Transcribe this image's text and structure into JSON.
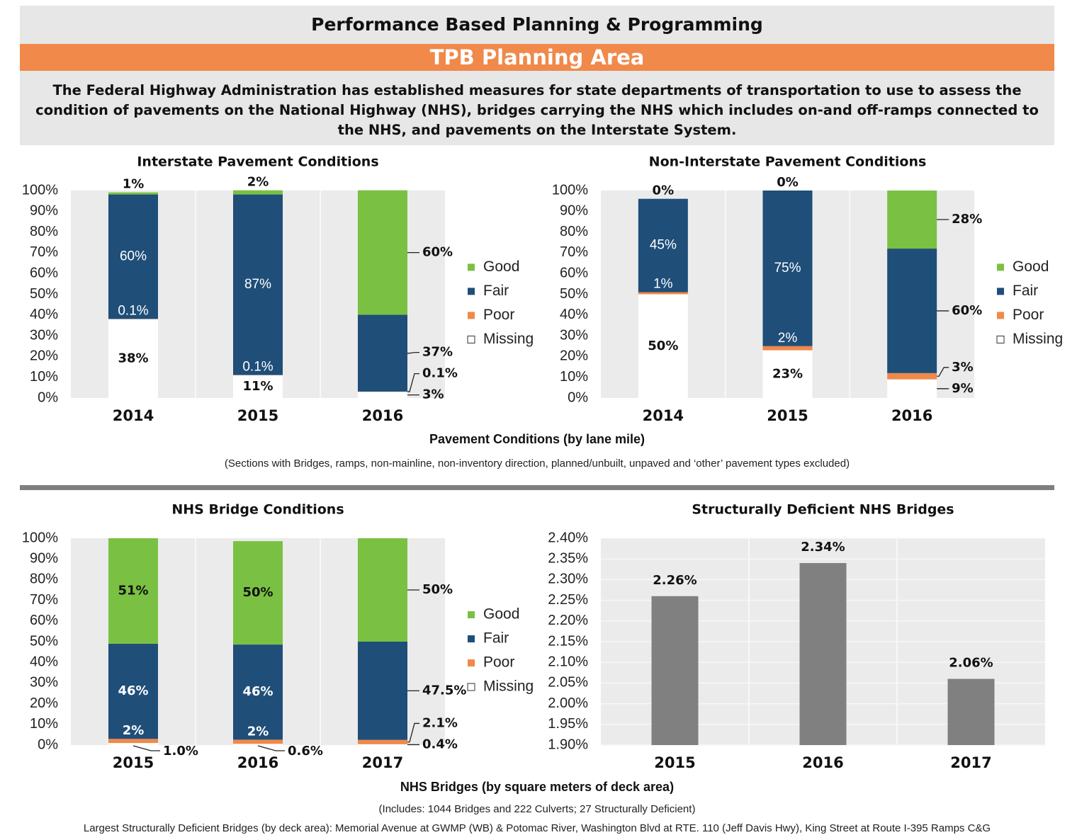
{
  "header": {
    "title": "Performance Based Planning & Programming",
    "subtitle": "TPB Planning Area",
    "description": "The Federal Highway Administration has established measures for state departments of transportation to use to assess the condition of pavements on the National Highway (NHS), bridges carrying the NHS which includes on-and off-ramps connected to the NHS, and pavements on the Interstate System."
  },
  "chart_data": [
    {
      "type": "stacked_bar",
      "title": "Interstate Pavement Conditions",
      "categories": [
        "2014",
        "2015",
        "2016"
      ],
      "series": [
        {
          "name": "Good",
          "color": "#7ac143",
          "values": [
            1,
            2,
            60
          ],
          "value_labels": [
            "1%",
            "2%",
            "60%"
          ]
        },
        {
          "name": "Fair",
          "color": "#1f4e79",
          "values": [
            60,
            87,
            37
          ],
          "value_labels": [
            "60%",
            "87%",
            "37%"
          ]
        },
        {
          "name": "Poor",
          "color": "#f0894a",
          "values": [
            0.1,
            0.1,
            0.1
          ],
          "value_labels": [
            "0.1%",
            "0.1%",
            "0.1%"
          ]
        },
        {
          "name": "Missing",
          "color": "#ffffff",
          "values": [
            38,
            11,
            3
          ],
          "value_labels": [
            "38%",
            "11%",
            "3%"
          ]
        }
      ],
      "ylim": [
        0,
        100
      ],
      "yticks": [
        {
          "value": 0,
          "label": "0%"
        },
        {
          "value": 10,
          "label": "10%"
        },
        {
          "value": 20,
          "label": "20%"
        },
        {
          "value": 30,
          "label": "30%"
        },
        {
          "value": 40,
          "label": "40%"
        },
        {
          "value": 50,
          "label": "50%"
        },
        {
          "value": 60,
          "label": "60%"
        },
        {
          "value": 70,
          "label": "70%"
        },
        {
          "value": 80,
          "label": "80%"
        },
        {
          "value": 90,
          "label": "90%"
        },
        {
          "value": 100,
          "label": "100%"
        }
      ],
      "grid": false,
      "legend": "right"
    },
    {
      "type": "stacked_bar",
      "title": "Non-Interstate Pavement Conditions",
      "categories": [
        "2014",
        "2015",
        "2016"
      ],
      "series": [
        {
          "name": "Good",
          "color": "#7ac143",
          "values": [
            0,
            0,
            28
          ],
          "value_labels": [
            "0%",
            "0%",
            "28%"
          ]
        },
        {
          "name": "Fair",
          "color": "#1f4e79",
          "values": [
            45,
            75,
            60
          ],
          "value_labels": [
            "45%",
            "75%",
            "60%"
          ]
        },
        {
          "name": "Poor",
          "color": "#f0894a",
          "values": [
            1,
            2,
            3
          ],
          "value_labels": [
            "1%",
            "2%",
            "3%"
          ]
        },
        {
          "name": "Missing",
          "color": "#ffffff",
          "values": [
            50,
            23,
            9
          ],
          "value_labels": [
            "50%",
            "23%",
            "9%"
          ]
        }
      ],
      "ylim": [
        0,
        100
      ],
      "yticks": [
        {
          "value": 0,
          "label": "0%"
        },
        {
          "value": 10,
          "label": "10%"
        },
        {
          "value": 20,
          "label": "20%"
        },
        {
          "value": 30,
          "label": "30%"
        },
        {
          "value": 40,
          "label": "40%"
        },
        {
          "value": 50,
          "label": "50%"
        },
        {
          "value": 60,
          "label": "60%"
        },
        {
          "value": 70,
          "label": "70%"
        },
        {
          "value": 80,
          "label": "80%"
        },
        {
          "value": 90,
          "label": "90%"
        },
        {
          "value": 100,
          "label": "100%"
        }
      ],
      "grid": false,
      "legend": "right"
    },
    {
      "type": "stacked_bar",
      "title": "NHS Bridge Conditions",
      "categories": [
        "2015",
        "2016",
        "2017"
      ],
      "series": [
        {
          "name": "Good",
          "color": "#7ac143",
          "values": [
            51,
            50,
            50
          ],
          "value_labels": [
            "51%",
            "50%",
            "50%"
          ]
        },
        {
          "name": "Fair",
          "color": "#1f4e79",
          "values": [
            46,
            46,
            47.5
          ],
          "value_labels": [
            "46%",
            "46%",
            "47.5%"
          ]
        },
        {
          "name": "Poor",
          "color": "#f0894a",
          "values": [
            2,
            2,
            2.1
          ],
          "value_labels": [
            "2%",
            "2%",
            "2.1%"
          ]
        },
        {
          "name": "Missing",
          "color": "#ffffff",
          "values": [
            1.0,
            0.6,
            0.4
          ],
          "value_labels": [
            "1.0%",
            "0.6%",
            "0.4%"
          ]
        }
      ],
      "ylim": [
        0,
        100
      ],
      "yticks": [
        {
          "value": 0,
          "label": "0%"
        },
        {
          "value": 10,
          "label": "10%"
        },
        {
          "value": 20,
          "label": "20%"
        },
        {
          "value": 30,
          "label": "30%"
        },
        {
          "value": 40,
          "label": "40%"
        },
        {
          "value": 50,
          "label": "50%"
        },
        {
          "value": 60,
          "label": "60%"
        },
        {
          "value": 70,
          "label": "70%"
        },
        {
          "value": 80,
          "label": "80%"
        },
        {
          "value": 90,
          "label": "90%"
        },
        {
          "value": 100,
          "label": "100%"
        }
      ],
      "grid": false,
      "legend": "right"
    },
    {
      "type": "bar",
      "title": "Structurally Deficient NHS Bridges",
      "categories": [
        "2015",
        "2016",
        "2017"
      ],
      "values": [
        2.26,
        2.34,
        2.06
      ],
      "value_labels": [
        "2.26%",
        "2.34%",
        "2.06%"
      ],
      "color": "#808080",
      "ylim": [
        1.9,
        2.4
      ],
      "yticks": [
        {
          "value": 1.9,
          "label": "1.90%"
        },
        {
          "value": 1.95,
          "label": "1.95%"
        },
        {
          "value": 2.0,
          "label": "2.00%"
        },
        {
          "value": 2.05,
          "label": "2.05%"
        },
        {
          "value": 2.1,
          "label": "2.10%"
        },
        {
          "value": 2.15,
          "label": "2.15%"
        },
        {
          "value": 2.2,
          "label": "2.20%"
        },
        {
          "value": 2.25,
          "label": "2.25%"
        },
        {
          "value": 2.3,
          "label": "2.30%"
        },
        {
          "value": 2.35,
          "label": "2.35%"
        },
        {
          "value": 2.4,
          "label": "2.40%"
        }
      ],
      "grid": true
    }
  ],
  "notes": {
    "pavement_axis": "Pavement Conditions (by lane mile)",
    "pavement_note": "(Sections with Bridges, ramps, non-mainline, non-inventory direction, planned/unbuilt, unpaved and ‘other’ pavement types excluded)",
    "bridge_axis": "NHS Bridges (by square meters of deck area)",
    "bridge_note": "(Includes: 1044 Bridges and 222 Culverts; 27 Structurally Deficient)",
    "bridge_list": "Largest Structurally Deficient Bridges (by deck area): Memorial Avenue at GWMP (WB) & Potomac River, Washington Blvd at RTE. 110 (Jeff Davis Hwy), King Street at Route I-395 Ramps C&G"
  }
}
